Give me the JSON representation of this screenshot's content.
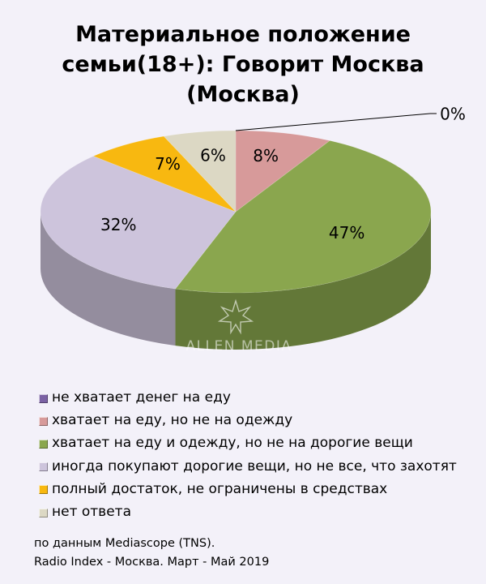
{
  "title_lines": [
    "Материальное положение",
    "семьи(18+): Говорит Москва",
    "(Москва)"
  ],
  "chart_data": {
    "type": "pie",
    "style": "3d",
    "categories": [
      "не хватает денег на еду",
      "хватает на еду, но не на одежду",
      "хватает на еду и одежду, но не на дорогие вещи",
      "иногда покупают дорогие вещи, но не все, что захотят",
      "полный достаток, не ограничены в средствах",
      "нет ответа"
    ],
    "values": [
      0,
      8,
      47,
      32,
      7,
      6
    ],
    "labels": [
      "0%",
      "8%",
      "47%",
      "32%",
      "7%",
      "6%"
    ],
    "colors": [
      "#7b62a4",
      "#d79a9a",
      "#8aa64e",
      "#cdc4dc",
      "#f8b810",
      "#dcd8c4"
    ],
    "legend_position": "bottom"
  },
  "watermark": "ALLEN MEDIA",
  "source_lines": [
    "по данным Mediascope (TNS).",
    "Radio Index - Москва. Март - Май 2019"
  ]
}
